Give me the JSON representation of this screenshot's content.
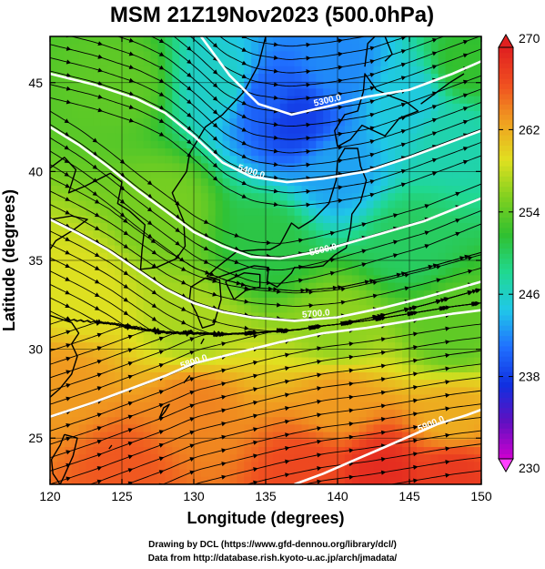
{
  "chart_data": {
    "type": "heatmap",
    "title": "MSM 21Z19Nov2023 (500.0hPa)",
    "xlabel": "Longitude (degrees)",
    "ylabel": "Latitude  (degrees)",
    "xlim": [
      120,
      150
    ],
    "ylim": [
      22.4,
      47.6
    ],
    "x_ticks": [
      120,
      125,
      130,
      135,
      140,
      145,
      150
    ],
    "y_ticks": [
      25,
      30,
      35,
      40,
      45
    ],
    "grid": true,
    "overlay": "streamlines of wind with arrowheads",
    "colorbar": {
      "min": 230,
      "max": 270,
      "ticks": [
        230,
        238,
        246,
        254,
        262,
        270
      ],
      "colors": [
        "#d000d0",
        "#6010c0",
        "#1030e0",
        "#2070ff",
        "#20c8e8",
        "#20d890",
        "#30c030",
        "#80d020",
        "#e0e020",
        "#f0a020",
        "#f05020",
        "#e02020"
      ]
    },
    "temperature_anchors": [
      {
        "lon": 125,
        "lat": 45,
        "t": 254
      },
      {
        "lon": 128,
        "lat": 38,
        "t": 255
      },
      {
        "lon": 132,
        "lat": 45,
        "t": 246
      },
      {
        "lon": 135,
        "lat": 44,
        "t": 240
      },
      {
        "lon": 137,
        "lat": 43,
        "t": 238
      },
      {
        "lon": 140,
        "lat": 46,
        "t": 242
      },
      {
        "lon": 140,
        "lat": 40,
        "t": 243
      },
      {
        "lon": 145,
        "lat": 44,
        "t": 245
      },
      {
        "lon": 148,
        "lat": 42,
        "t": 247
      },
      {
        "lon": 149,
        "lat": 46,
        "t": 252
      },
      {
        "lon": 135,
        "lat": 36,
        "t": 251
      },
      {
        "lon": 145,
        "lat": 36,
        "t": 250
      },
      {
        "lon": 122,
        "lat": 33,
        "t": 259
      },
      {
        "lon": 130,
        "lat": 31,
        "t": 257
      },
      {
        "lon": 140,
        "lat": 31,
        "t": 256
      },
      {
        "lon": 148,
        "lat": 31,
        "t": 254
      },
      {
        "lon": 121,
        "lat": 28,
        "t": 263
      },
      {
        "lon": 130,
        "lat": 27,
        "t": 264
      },
      {
        "lon": 140,
        "lat": 27,
        "t": 263
      },
      {
        "lon": 148,
        "lat": 26,
        "t": 262
      },
      {
        "lon": 125,
        "lat": 23,
        "t": 266
      },
      {
        "lon": 138,
        "lat": 23,
        "t": 267
      },
      {
        "lon": 143,
        "lat": 23,
        "t": 269
      },
      {
        "lon": 148,
        "lat": 23,
        "t": 268
      }
    ],
    "height_contours": [
      {
        "label": "5300.0",
        "label_lon": 139.3,
        "label_lat": 44.0,
        "path": [
          [
            130.5,
            47.6
          ],
          [
            132.5,
            45.4
          ],
          [
            134.5,
            43.8
          ],
          [
            136.8,
            43.2
          ],
          [
            139.5,
            43.7
          ],
          [
            142,
            44.2
          ],
          [
            145,
            44.6
          ],
          [
            148,
            45.5
          ],
          [
            150,
            46.2
          ]
        ]
      },
      {
        "label": "5400.0",
        "label_lon": 134.0,
        "label_lat": 40.0,
        "path": [
          [
            120,
            45.5
          ],
          [
            123,
            44.9
          ],
          [
            126,
            44.1
          ],
          [
            128,
            43.3
          ],
          [
            130,
            42.0
          ],
          [
            132,
            40.5
          ],
          [
            134,
            39.7
          ],
          [
            136.5,
            39.4
          ],
          [
            139,
            39.6
          ],
          [
            142,
            40.0
          ],
          [
            145,
            40.8
          ],
          [
            148,
            41.7
          ],
          [
            150,
            42.3
          ]
        ]
      },
      {
        "label": "5500.0",
        "label_lon": 139.0,
        "label_lat": 35.6,
        "path": [
          [
            120,
            42.5
          ],
          [
            122,
            41.5
          ],
          [
            124,
            40.3
          ],
          [
            126,
            39.0
          ],
          [
            128,
            37.8
          ],
          [
            130,
            36.6
          ],
          [
            132,
            35.8
          ],
          [
            134,
            35.2
          ],
          [
            136,
            35.1
          ],
          [
            138,
            35.4
          ],
          [
            140,
            35.8
          ],
          [
            143,
            36.5
          ],
          [
            146,
            37.2
          ],
          [
            150,
            38.5
          ]
        ]
      },
      {
        "label": "5700.0",
        "label_lon": 138.5,
        "label_lat": 32.0,
        "path": [
          [
            120,
            37.3
          ],
          [
            122,
            36.5
          ],
          [
            124,
            35.6
          ],
          [
            126,
            34.5
          ],
          [
            128,
            33.4
          ],
          [
            130,
            32.6
          ],
          [
            132,
            32.1
          ],
          [
            134,
            31.8
          ],
          [
            137,
            31.6
          ],
          [
            140,
            31.8
          ],
          [
            143,
            32.3
          ],
          [
            146,
            32.9
          ],
          [
            150,
            33.8
          ]
        ]
      },
      {
        "label": "5800.0",
        "label_lon": 130.0,
        "label_lat": 29.3,
        "path": [
          [
            120,
            26.2
          ],
          [
            123,
            27.0
          ],
          [
            126,
            27.9
          ],
          [
            128,
            28.5
          ],
          [
            130,
            29.2
          ],
          [
            133,
            29.8
          ],
          [
            136,
            30.4
          ],
          [
            139,
            30.9
          ],
          [
            142,
            31.2
          ],
          [
            145,
            31.6
          ],
          [
            148,
            32.0
          ],
          [
            150,
            32.2
          ]
        ]
      },
      {
        "label": "5900.0",
        "label_lon": 146.5,
        "label_lat": 25.8,
        "path": [
          [
            137,
            22.4
          ],
          [
            139,
            23.0
          ],
          [
            141,
            23.7
          ],
          [
            143,
            24.4
          ],
          [
            145,
            25.1
          ],
          [
            147,
            25.8
          ],
          [
            149,
            26.3
          ],
          [
            150,
            26.6
          ]
        ]
      }
    ]
  },
  "credits": {
    "line1": "Drawing by DCL (https://www.gfd-dennou.org/library/dcl/)",
    "line2": "Data from http://database.rish.kyoto-u.ac.jp/arch/jmadata/"
  }
}
